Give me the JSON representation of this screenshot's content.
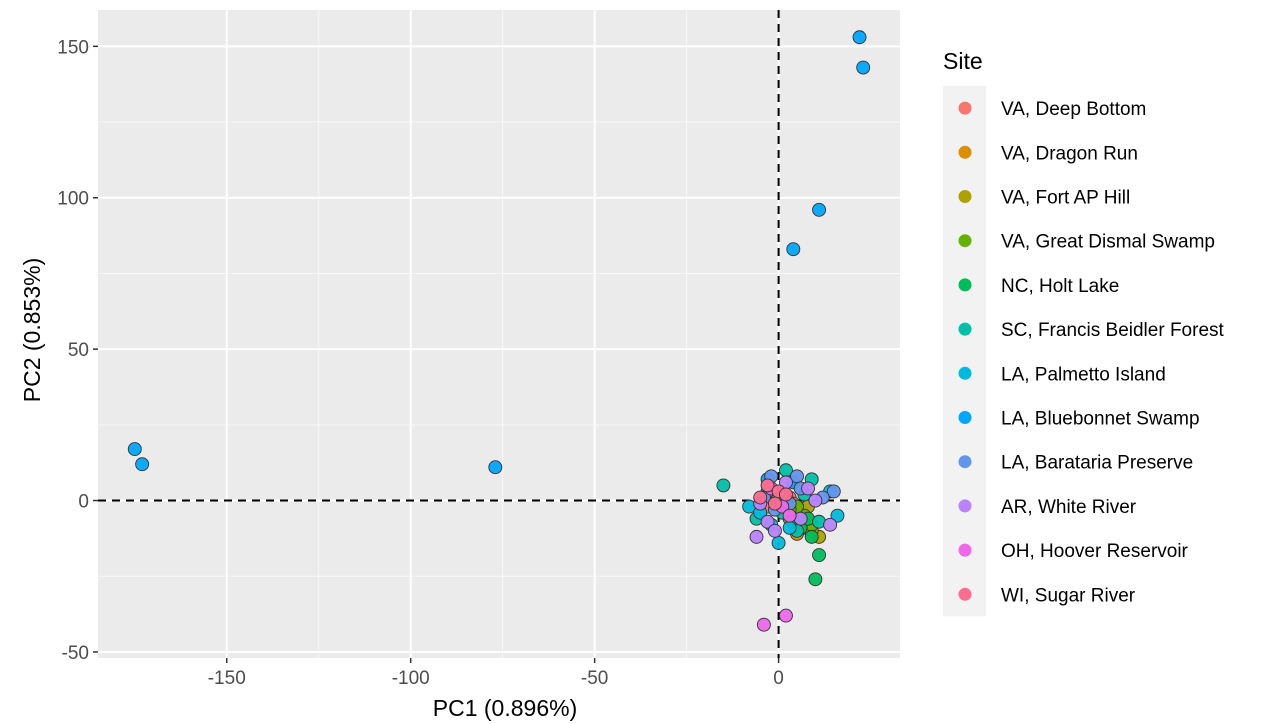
{
  "chart_data": {
    "type": "scatter",
    "xlabel": "PC1 (0.896%)",
    "ylabel": "PC2 (0.853%)",
    "xlim": [
      -185,
      33
    ],
    "ylim": [
      -52,
      162
    ],
    "xticks": [
      -150,
      -100,
      -50,
      0
    ],
    "yticks": [
      -50,
      0,
      50,
      100,
      150
    ],
    "x_tick_labels": [
      "-150",
      "-100",
      "-50",
      "0"
    ],
    "y_tick_labels": [
      "-50",
      "0",
      "50",
      "100",
      "150"
    ],
    "grid": true,
    "background": "#ebebeb",
    "reference_lines": {
      "x": 0,
      "y": 0,
      "style": "dashed"
    },
    "legend": {
      "title": "Site",
      "position": "right"
    },
    "series": [
      {
        "name": "VA, Deep Bottom",
        "color": "#F8766D",
        "points": [
          [
            -2,
            2
          ],
          [
            1,
            -1
          ],
          [
            -3,
            -2
          ],
          [
            3,
            1
          ],
          [
            0,
            0
          ],
          [
            2,
            -3
          ],
          [
            -1,
            3
          ],
          [
            4,
            -1
          ]
        ]
      },
      {
        "name": "VA, Dragon Run",
        "color": "#DB8E00",
        "points": [
          [
            5,
            -11
          ],
          [
            7,
            -9
          ],
          [
            3,
            -6
          ],
          [
            6,
            -3
          ],
          [
            2,
            0
          ],
          [
            8,
            -7
          ]
        ]
      },
      {
        "name": "VA, Fort AP Hill",
        "color": "#AEA200",
        "points": [
          [
            11,
            -12
          ],
          [
            9,
            -10
          ],
          [
            6,
            -8
          ],
          [
            4,
            -4
          ],
          [
            8,
            -2
          ]
        ]
      },
      {
        "name": "VA, Great Dismal Swamp",
        "color": "#64B200",
        "points": [
          [
            7,
            -5
          ],
          [
            5,
            -2
          ],
          [
            9,
            -8
          ],
          [
            3,
            -3
          ]
        ]
      },
      {
        "name": "NC, Holt Lake",
        "color": "#00BD5C",
        "points": [
          [
            10,
            -26
          ],
          [
            11,
            -18
          ],
          [
            9,
            -12
          ],
          [
            6,
            -9
          ],
          [
            8,
            -6
          ],
          [
            4,
            -7
          ]
        ]
      },
      {
        "name": "SC, Francis Beidler Forest",
        "color": "#00C1A7",
        "points": [
          [
            -15,
            5
          ],
          [
            2,
            10
          ],
          [
            9,
            7
          ],
          [
            -6,
            -6
          ],
          [
            11,
            -7
          ],
          [
            -3,
            3
          ],
          [
            5,
            -10
          ],
          [
            1,
            -4
          ],
          [
            7,
            2
          ]
        ]
      },
      {
        "name": "LA, Palmetto Island",
        "color": "#00BADE",
        "points": [
          [
            -8,
            -2
          ],
          [
            -5,
            -4
          ],
          [
            0,
            -14
          ],
          [
            14,
            3
          ],
          [
            16,
            -5
          ],
          [
            3,
            -9
          ],
          [
            -2,
            -8
          ],
          [
            1,
            1
          ]
        ]
      },
      {
        "name": "LA, Bluebonnet Swamp",
        "color": "#00A6FF",
        "points": [
          [
            -175,
            17
          ],
          [
            -173,
            12
          ],
          [
            -77,
            11
          ],
          [
            22,
            153
          ],
          [
            23,
            143
          ],
          [
            11,
            96
          ],
          [
            4,
            83
          ],
          [
            -3,
            7
          ],
          [
            4,
            6
          ]
        ]
      },
      {
        "name": "LA, Barataria Preserve",
        "color": "#6495ED",
        "points": [
          [
            -2,
            8
          ],
          [
            15,
            3
          ],
          [
            5,
            8
          ],
          [
            -4,
            1
          ],
          [
            3,
            -1
          ],
          [
            6,
            4
          ],
          [
            12,
            1
          ],
          [
            -1,
            -3
          ]
        ]
      },
      {
        "name": "AR, White River",
        "color": "#B983FF",
        "points": [
          [
            -6,
            -12
          ],
          [
            14,
            -8
          ],
          [
            -3,
            -7
          ],
          [
            8,
            4
          ],
          [
            -5,
            -1
          ],
          [
            6,
            -6
          ],
          [
            10,
            0
          ],
          [
            2,
            6
          ],
          [
            -1,
            -10
          ]
        ]
      },
      {
        "name": "OH, Hoover Reservoir",
        "color": "#EF67EB",
        "points": [
          [
            -4,
            -41
          ],
          [
            2,
            -38
          ],
          [
            -2,
            4
          ],
          [
            1,
            -2
          ],
          [
            3,
            -5
          ]
        ]
      },
      {
        "name": "WI, Sugar River",
        "color": "#FF6C91",
        "points": [
          [
            -3,
            5
          ],
          [
            -5,
            1
          ],
          [
            0,
            3
          ],
          [
            -1,
            -1
          ],
          [
            2,
            2
          ]
        ]
      }
    ]
  }
}
